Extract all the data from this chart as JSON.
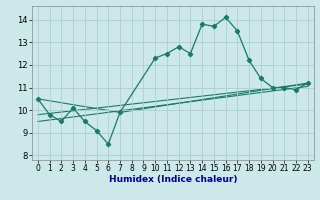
{
  "title": "",
  "xlabel": "Humidex (Indice chaleur)",
  "ylabel": "",
  "xlim": [
    -0.5,
    23.5
  ],
  "ylim": [
    7.8,
    14.6
  ],
  "yticks": [
    8,
    9,
    10,
    11,
    12,
    13,
    14
  ],
  "xticks": [
    0,
    1,
    2,
    3,
    4,
    5,
    6,
    7,
    8,
    9,
    10,
    11,
    12,
    13,
    14,
    15,
    16,
    17,
    18,
    19,
    20,
    21,
    22,
    23
  ],
  "bg_color": "#cce8e8",
  "grid_color": "#aacece",
  "line_color": "#1a7a6a",
  "series1_x": [
    0,
    1,
    2,
    3,
    4,
    5,
    6,
    7,
    10,
    11,
    12,
    13,
    14,
    15,
    16,
    17,
    18,
    19,
    20,
    21,
    22,
    23
  ],
  "series1_y": [
    10.5,
    9.8,
    9.5,
    10.1,
    9.5,
    9.1,
    8.5,
    9.9,
    12.3,
    12.5,
    12.8,
    12.5,
    13.8,
    13.7,
    14.1,
    13.5,
    12.2,
    11.4,
    11.0,
    11.0,
    10.9,
    11.2
  ],
  "series2_x": [
    0,
    7,
    23
  ],
  "series2_y": [
    10.5,
    9.9,
    11.2
  ],
  "series3_x": [
    0,
    23
  ],
  "series3_y": [
    9.8,
    11.15
  ],
  "series4_x": [
    0,
    23
  ],
  "series4_y": [
    9.5,
    11.05
  ],
  "xlabel_color": "#00008b",
  "xlabel_fontsize": 6.5,
  "tick_fontsize": 5.5
}
